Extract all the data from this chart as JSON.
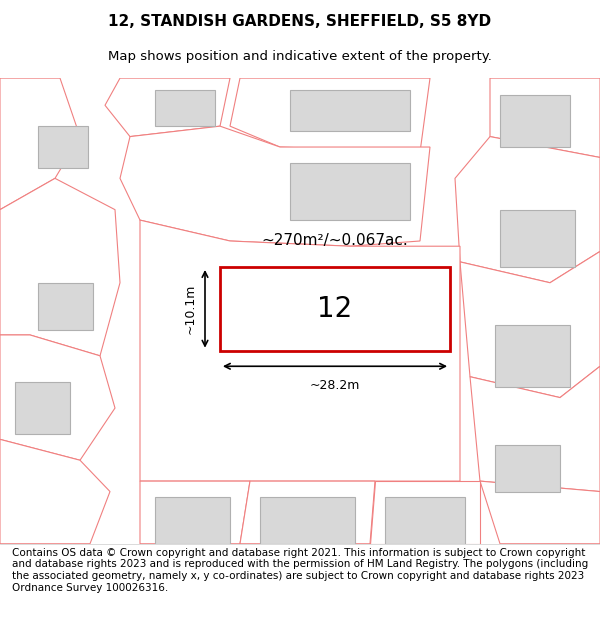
{
  "title_line1": "12, STANDISH GARDENS, SHEFFIELD, S5 8YD",
  "title_line2": "Map shows position and indicative extent of the property.",
  "footer_text": "Contains OS data © Crown copyright and database right 2021. This information is subject to Crown copyright and database rights 2023 and is reproduced with the permission of HM Land Registry. The polygons (including the associated geometry, namely x, y co-ordinates) are subject to Crown copyright and database rights 2023 Ordnance Survey 100026316.",
  "bg_color": "#f5f5f5",
  "map_bg": "#f0eeee",
  "plot_border_color": "#cc0000",
  "neighbor_line_color": "#f08080",
  "building_fill": "#d8d8d8",
  "building_edge": "#b0b0b0",
  "area_label": "~270m²/~0.067ac.",
  "width_label": "~28.2m",
  "height_label": "~10.1m",
  "plot_number": "12",
  "title_fontsize": 11,
  "subtitle_fontsize": 9.5,
  "footer_fontsize": 7.5
}
